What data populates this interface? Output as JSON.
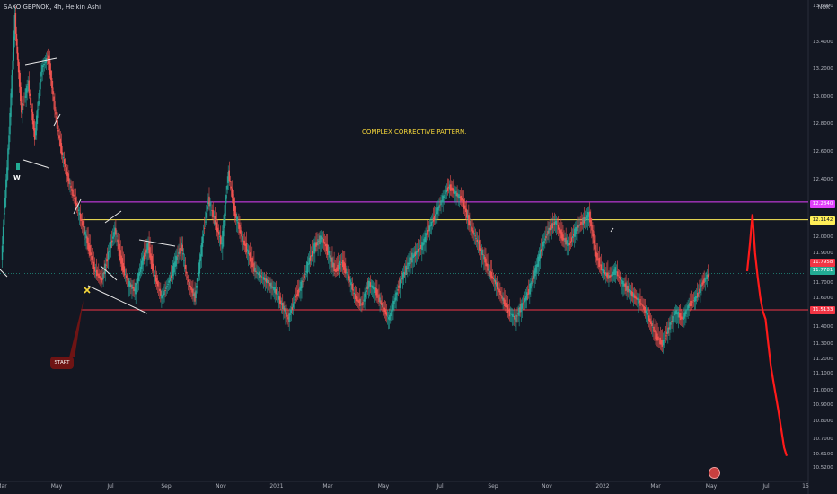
{
  "header": {
    "symbol": "SAXO:GBPNOK, 4h, Heikin Ashi",
    "currency": "NOK"
  },
  "annotations": {
    "pattern_text": "COMPLEX CORRECTIVE PATTERN.",
    "start_label": "START",
    "w_label": "W"
  },
  "price_labels": [
    {
      "id": "magenta",
      "text": "12.2340",
      "value": 12.234,
      "color": "#e040fb",
      "text_color": "#ffffff"
    },
    {
      "id": "yellow",
      "text": "12.1142",
      "value": 12.1142,
      "color": "#ffee58",
      "text_color": "#131722"
    },
    {
      "id": "red-last",
      "text": "11.7958",
      "value": 11.7958,
      "color": "#f23645",
      "text_color": "#ffffff"
    },
    {
      "id": "teal-last",
      "text": "11.7781",
      "value": 11.7781,
      "color": "#22ab94",
      "text_color": "#ffffff"
    },
    {
      "id": "red-support",
      "text": "11.5133",
      "value": 11.5133,
      "color": "#f23645",
      "text_color": "#ffffff"
    }
  ],
  "chart_data": {
    "type": "line",
    "title": "SAXO:GBPNOK, 4h, Heikin Ashi",
    "ylim": [
      10.46,
      13.66
    ],
    "y_ticks": [
      "13.6000",
      "13.4000",
      "13.2000",
      "13.0000",
      "12.8000",
      "12.6000",
      "12.4000",
      "12.2000",
      "12.0000",
      "11.9000",
      "11.8000",
      "11.7000",
      "11.6000",
      "11.5000",
      "11.4000",
      "11.3000",
      "11.2000",
      "11.1000",
      "11.0000",
      "10.9000",
      "10.8000",
      "10.7000",
      "10.6100",
      "10.5200"
    ],
    "x_ticks": [
      "Mar",
      "May",
      "Jul",
      "Sep",
      "Nov",
      "2021",
      "Mar",
      "May",
      "Jul",
      "Sep",
      "Nov",
      "2022",
      "Mar",
      "May",
      "Jul",
      "15"
    ],
    "horizontal_levels": [
      {
        "value": 12.234,
        "color": "#e040fb"
      },
      {
        "value": 12.1142,
        "color": "#ffee58"
      },
      {
        "value": 11.5133,
        "color": "#f23645"
      }
    ],
    "series": [
      {
        "values": [
          11.85,
          12.6,
          13.55,
          12.9,
          13.1,
          12.7,
          13.2,
          13.3,
          12.9,
          12.6,
          12.4,
          12.25,
          12.1,
          11.95,
          11.8,
          11.72,
          11.9,
          12.05,
          11.85,
          11.7,
          11.65,
          11.85,
          11.95,
          11.75,
          11.6,
          11.7,
          11.85,
          11.95,
          11.7,
          11.6,
          11.95,
          12.25,
          12.1,
          11.95,
          12.45,
          12.15,
          12.0,
          11.9,
          11.8,
          11.75,
          11.7,
          11.65,
          11.55,
          11.45,
          11.6,
          11.7,
          11.85,
          11.95,
          12.0,
          11.9,
          11.8,
          11.85,
          11.75,
          11.6,
          11.55,
          11.7,
          11.65,
          11.55,
          11.45,
          11.6,
          11.75,
          11.85,
          11.9,
          11.95,
          12.05,
          12.15,
          12.25,
          12.35,
          12.3,
          12.25,
          12.1,
          12.0,
          11.9,
          11.8,
          11.7,
          11.6,
          11.5,
          11.45,
          11.55,
          11.65,
          11.8,
          11.95,
          12.05,
          12.1,
          12.0,
          11.95,
          12.05,
          12.1,
          12.15,
          11.9,
          11.8,
          11.75,
          11.8,
          11.7,
          11.65,
          11.6,
          11.55,
          11.45,
          11.35,
          11.3,
          11.4,
          11.5,
          11.45,
          11.55,
          11.6,
          11.7,
          11.78
        ]
      },
      {
        "values": [
          11.8,
          11.95,
          12.15,
          11.9,
          11.75,
          11.6,
          11.5,
          11.45,
          11.3,
          11.15,
          11.05,
          10.95,
          10.85,
          10.75,
          10.65,
          10.6
        ]
      }
    ]
  }
}
